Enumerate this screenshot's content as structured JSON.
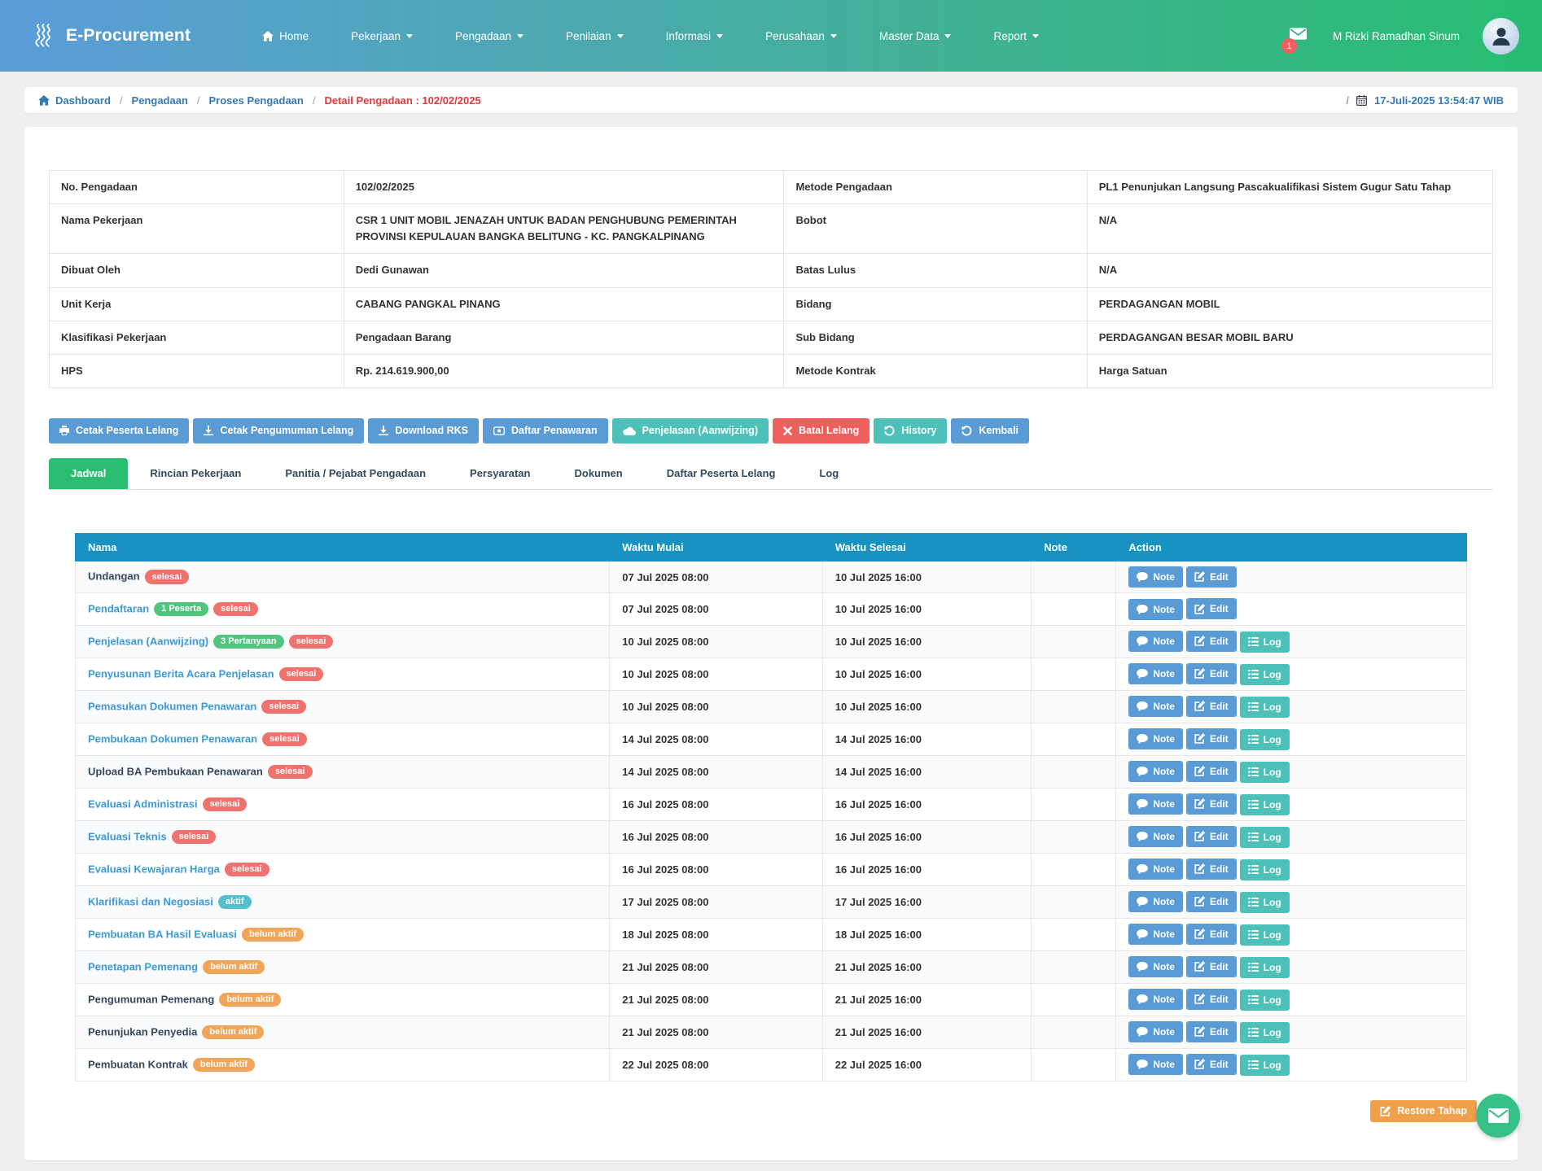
{
  "navbar": {
    "brand": "E-Procurement",
    "items": [
      {
        "label": "Home",
        "icon": "home",
        "dropdown": false
      },
      {
        "label": "Pekerjaan",
        "dropdown": true
      },
      {
        "label": "Pengadaan",
        "dropdown": true
      },
      {
        "label": "Penilaian",
        "dropdown": true
      },
      {
        "label": "Informasi",
        "dropdown": true
      },
      {
        "label": "Perusahaan",
        "dropdown": true
      },
      {
        "label": "Master Data",
        "dropdown": true
      },
      {
        "label": "Report",
        "dropdown": true
      }
    ],
    "mail_badge": "1",
    "user_name": "M Rizki Ramadhan Sinum"
  },
  "breadcrumb": {
    "links": [
      "Dashboard",
      "Pengadaan",
      "Proses Pengadaan"
    ],
    "current": "Detail Pengadaan : 102/02/2025",
    "datetime": "17-Juli-2025 13:54:47 WIB"
  },
  "detail": {
    "rows": [
      {
        "label_left": "No. Pengadaan",
        "value_left": "102/02/2025",
        "label_right": "Metode Pengadaan",
        "value_right": "PL1 Penunjukan Langsung Pascakualifikasi Sistem Gugur Satu Tahap"
      },
      {
        "label_left": "Nama Pekerjaan",
        "value_left": "CSR 1 UNIT MOBIL JENAZAH UNTUK BADAN PENGHUBUNG PEMERINTAH PROVINSI KEPULAUAN BANGKA BELITUNG - KC. PANGKALPINANG",
        "label_right": "Bobot",
        "value_right": "N/A"
      },
      {
        "label_left": "Dibuat Oleh",
        "value_left": "Dedi Gunawan",
        "label_right": "Batas Lulus",
        "value_right": "N/A"
      },
      {
        "label_left": "Unit Kerja",
        "value_left": "CABANG PANGKAL PINANG",
        "label_right": "Bidang",
        "value_right": "PERDAGANGAN MOBIL"
      },
      {
        "label_left": "Klasifikasi Pekerjaan",
        "value_left": "Pengadaan Barang",
        "label_right": "Sub Bidang",
        "value_right": "PERDAGANGAN BESAR MOBIL BARU"
      },
      {
        "label_left": "HPS",
        "value_left": "Rp. 214.619.900,00",
        "label_right": "Metode Kontrak",
        "value_right": "Harga Satuan"
      }
    ]
  },
  "toolbar": {
    "buttons": [
      {
        "label": "Cetak Peserta Lelang",
        "icon": "print",
        "variant": "blue"
      },
      {
        "label": "Cetak Pengumuman Lelang",
        "icon": "download",
        "variant": "blue"
      },
      {
        "label": "Download RKS",
        "icon": "download",
        "variant": "blue"
      },
      {
        "label": "Daftar Penawaran",
        "icon": "card",
        "variant": "blue"
      },
      {
        "label": "Penjelasan (Aanwijzing)",
        "icon": "cloud",
        "variant": "teal"
      },
      {
        "label": "Batal Lelang",
        "icon": "close",
        "variant": "red"
      },
      {
        "label": "History",
        "icon": "history",
        "variant": "teal"
      },
      {
        "label": "Kembali",
        "icon": "undo",
        "variant": "blue"
      }
    ]
  },
  "tabs": [
    {
      "label": "Jadwal",
      "active": true
    },
    {
      "label": "Rincian Pekerjaan",
      "active": false
    },
    {
      "label": "Panitia / Pejabat Pengadaan",
      "active": false
    },
    {
      "label": "Persyaratan",
      "active": false
    },
    {
      "label": "Dokumen",
      "active": false
    },
    {
      "label": "Daftar Peserta Lelang",
      "active": false
    },
    {
      "label": "Log",
      "active": false
    }
  ],
  "schedule": {
    "columns": [
      "Nama",
      "Waktu Mulai",
      "Waktu Selesai",
      "Note",
      "Action"
    ],
    "action_labels": {
      "note": "Note",
      "edit": "Edit",
      "log": "Log"
    },
    "rows": [
      {
        "name": "Undangan",
        "link": false,
        "badges": [
          {
            "text": "selesai",
            "variant": "done"
          }
        ],
        "start": "07 Jul 2025 08:00",
        "end": "10 Jul 2025 16:00",
        "note": "",
        "actions": [
          "note",
          "edit"
        ]
      },
      {
        "name": "Pendaftaran",
        "link": true,
        "badges": [
          {
            "text": "1 Peserta",
            "variant": "info"
          },
          {
            "text": "selesai",
            "variant": "done"
          }
        ],
        "start": "07 Jul 2025 08:00",
        "end": "10 Jul 2025 16:00",
        "note": "",
        "actions": [
          "note",
          "edit"
        ]
      },
      {
        "name": "Penjelasan (Aanwijzing)",
        "link": true,
        "badges": [
          {
            "text": "3 Pertanyaan",
            "variant": "info"
          },
          {
            "text": "selesai",
            "variant": "done"
          }
        ],
        "start": "10 Jul 2025 08:00",
        "end": "10 Jul 2025 16:00",
        "note": "",
        "actions": [
          "note",
          "edit",
          "log"
        ]
      },
      {
        "name": "Penyusunan Berita Acara Penjelasan",
        "link": true,
        "badges": [
          {
            "text": "selesai",
            "variant": "done"
          }
        ],
        "start": "10 Jul 2025 08:00",
        "end": "10 Jul 2025 16:00",
        "note": "",
        "actions": [
          "note",
          "edit",
          "log"
        ]
      },
      {
        "name": "Pemasukan Dokumen Penawaran",
        "link": true,
        "badges": [
          {
            "text": "selesai",
            "variant": "done"
          }
        ],
        "start": "10 Jul 2025 08:00",
        "end": "10 Jul 2025 16:00",
        "note": "",
        "actions": [
          "note",
          "edit",
          "log"
        ]
      },
      {
        "name": "Pembukaan Dokumen Penawaran",
        "link": true,
        "badges": [
          {
            "text": "selesai",
            "variant": "done"
          }
        ],
        "start": "14 Jul 2025 08:00",
        "end": "14 Jul 2025 16:00",
        "note": "",
        "actions": [
          "note",
          "edit",
          "log"
        ]
      },
      {
        "name": "Upload BA Pembukaan Penawaran",
        "link": false,
        "badges": [
          {
            "text": "selesai",
            "variant": "done"
          }
        ],
        "start": "14 Jul 2025 08:00",
        "end": "14 Jul 2025 16:00",
        "note": "",
        "actions": [
          "note",
          "edit",
          "log"
        ]
      },
      {
        "name": "Evaluasi Administrasi",
        "link": true,
        "badges": [
          {
            "text": "selesai",
            "variant": "done"
          }
        ],
        "start": "16 Jul 2025 08:00",
        "end": "16 Jul 2025 16:00",
        "note": "",
        "actions": [
          "note",
          "edit",
          "log"
        ]
      },
      {
        "name": "Evaluasi Teknis",
        "link": true,
        "badges": [
          {
            "text": "selesai",
            "variant": "done"
          }
        ],
        "start": "16 Jul 2025 08:00",
        "end": "16 Jul 2025 16:00",
        "note": "",
        "actions": [
          "note",
          "edit",
          "log"
        ]
      },
      {
        "name": "Evaluasi Kewajaran Harga",
        "link": true,
        "badges": [
          {
            "text": "selesai",
            "variant": "done"
          }
        ],
        "start": "16 Jul 2025 08:00",
        "end": "16 Jul 2025 16:00",
        "note": "",
        "actions": [
          "note",
          "edit",
          "log"
        ]
      },
      {
        "name": "Klarifikasi dan Negosiasi",
        "link": true,
        "badges": [
          {
            "text": "aktif",
            "variant": "active"
          }
        ],
        "start": "17 Jul 2025 08:00",
        "end": "17 Jul 2025 16:00",
        "note": "",
        "actions": [
          "note",
          "edit",
          "log"
        ]
      },
      {
        "name": "Pembuatan BA Hasil Evaluasi",
        "link": true,
        "badges": [
          {
            "text": "belum aktif",
            "variant": "pending"
          }
        ],
        "start": "18 Jul 2025 08:00",
        "end": "18 Jul 2025 16:00",
        "note": "",
        "actions": [
          "note",
          "edit",
          "log"
        ]
      },
      {
        "name": "Penetapan Pemenang",
        "link": true,
        "badges": [
          {
            "text": "belum aktif",
            "variant": "pending"
          }
        ],
        "start": "21 Jul 2025 08:00",
        "end": "21 Jul 2025 16:00",
        "note": "",
        "actions": [
          "note",
          "edit",
          "log"
        ]
      },
      {
        "name": "Pengumuman Pemenang",
        "link": false,
        "badges": [
          {
            "text": "belum aktif",
            "variant": "pending"
          }
        ],
        "start": "21 Jul 2025 08:00",
        "end": "21 Jul 2025 16:00",
        "note": "",
        "actions": [
          "note",
          "edit",
          "log"
        ]
      },
      {
        "name": "Penunjukan Penyedia",
        "link": false,
        "badges": [
          {
            "text": "belum aktif",
            "variant": "pending"
          }
        ],
        "start": "21 Jul 2025 08:00",
        "end": "21 Jul 2025 16:00",
        "note": "",
        "actions": [
          "note",
          "edit",
          "log"
        ]
      },
      {
        "name": "Pembuatan Kontrak",
        "link": false,
        "badges": [
          {
            "text": "belum aktif",
            "variant": "pending"
          }
        ],
        "start": "22 Jul 2025 08:00",
        "end": "22 Jul 2025 16:00",
        "note": "",
        "actions": [
          "note",
          "edit",
          "log"
        ]
      }
    ]
  },
  "footer": {
    "restore_label": "Restore Tahap"
  },
  "colors": {
    "navbar_gradient_start": "#5c9cd9",
    "navbar_gradient_end": "#27bd71",
    "table_header_bg": "#1792c1",
    "active_tab_bg": "#2bbd71",
    "button_blue": "#5b9bd5",
    "button_teal": "#4ec0ba",
    "button_red": "#ef605d",
    "button_orange": "#f0a04a",
    "badge_done": "#f0726f",
    "badge_info": "#52c57d",
    "badge_active": "#53c1cd",
    "badge_pending": "#f0a558",
    "breadcrumb_link": "#337ab7",
    "breadcrumb_current": "#e8363a",
    "mail_badge_bg": "#f25f5f",
    "chat_fab_bg": "#35c188"
  }
}
